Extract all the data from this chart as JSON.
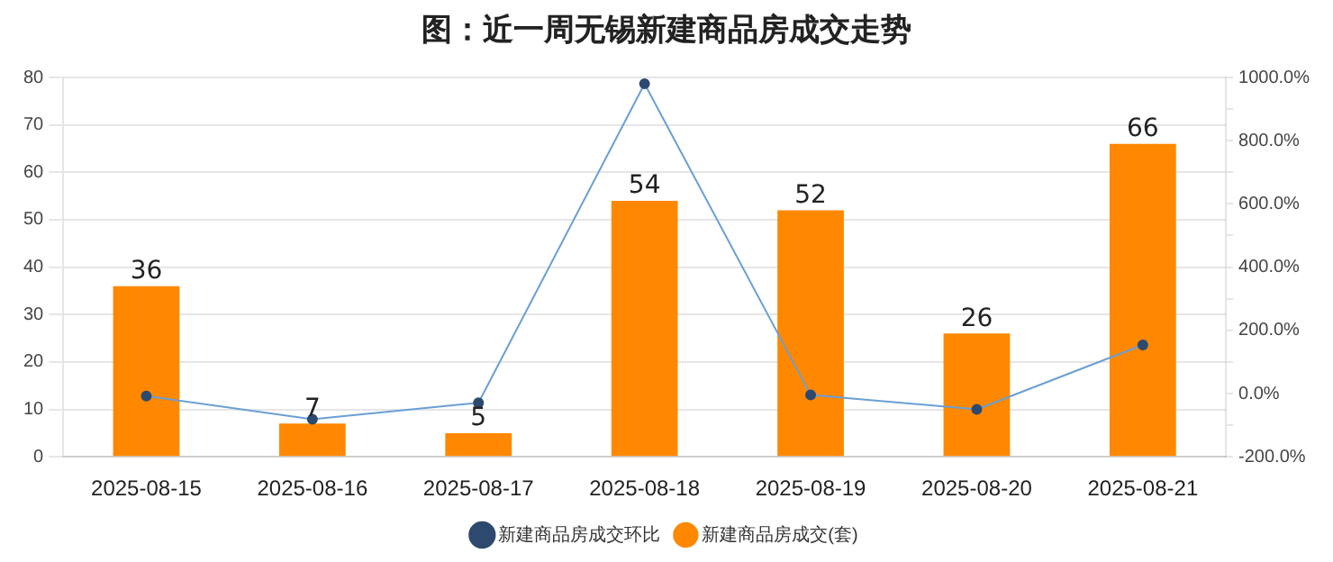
{
  "chart_data": {
    "type": "bar",
    "title": "图：近一周无锡新建商品房成交走势",
    "categories": [
      "2025-08-15",
      "2025-08-16",
      "2025-08-17",
      "2025-08-18",
      "2025-08-19",
      "2025-08-20",
      "2025-08-21"
    ],
    "series": [
      {
        "name": "新建商品房成交(套)",
        "color": "#ff8800",
        "values": [
          36,
          7,
          5,
          54,
          52,
          26,
          66
        ]
      },
      {
        "name": "新建商品房成交环比",
        "type": "line",
        "axis": "y2",
        "color": "#6a9fd4",
        "values": [
          -8,
          -81,
          -29,
          980,
          -4,
          -50,
          154
        ]
      }
    ],
    "ylim": [
      0,
      80
    ],
    "yticks": [
      0,
      10,
      20,
      30,
      40,
      50,
      60,
      70,
      80
    ],
    "y2lim": [
      -200,
      1000
    ],
    "y2ticks": [
      {
        "value": -200,
        "label": "-200.0%"
      },
      {
        "value": -100,
        "label": null
      },
      {
        "value": 0,
        "label": "0.0%"
      },
      {
        "value": 100,
        "label": null
      },
      {
        "value": 200,
        "label": "200.0%"
      },
      {
        "value": 300,
        "label": null
      },
      {
        "value": 400,
        "label": "400.0%"
      },
      {
        "value": 500,
        "label": null
      },
      {
        "value": 600,
        "label": "600.0%"
      },
      {
        "value": 700,
        "label": null
      },
      {
        "value": 800,
        "label": "800.0%"
      },
      {
        "value": 900,
        "label": null
      },
      {
        "value": 1000,
        "label": "1000.0%"
      }
    ],
    "value_labels": [
      "36",
      "7",
      "5",
      "54",
      "52",
      "26",
      "66"
    ],
    "grid": "y",
    "legend": "bottom",
    "marker": "circle"
  }
}
